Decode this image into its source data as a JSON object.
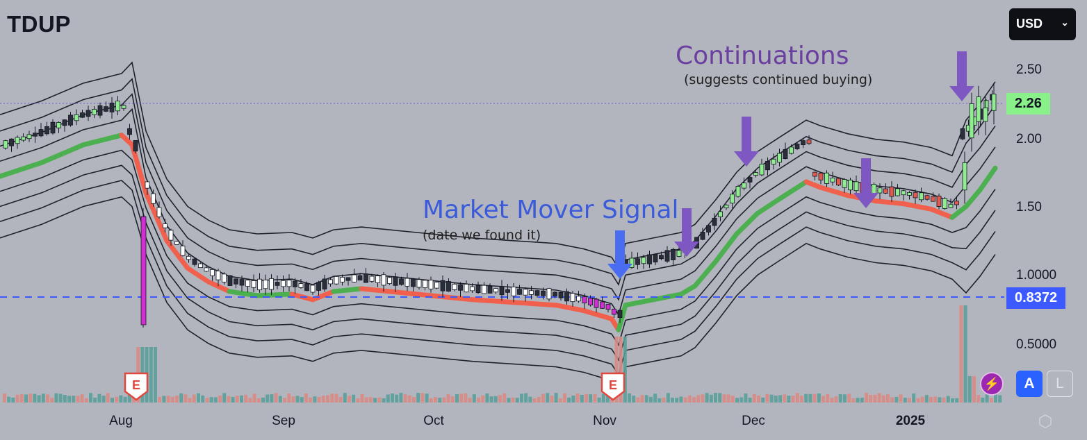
{
  "ticker": "TDUP",
  "currency": {
    "label": "USD",
    "icon": "chevron-down-icon"
  },
  "annotations": {
    "market_mover": {
      "title": "Market Mover Signal",
      "subtitle": "(date we found it)",
      "color": "#3b5bdb"
    },
    "continuations": {
      "title": "Continuations",
      "subtitle": "(suggests continued buying)",
      "color": "#6b3fa0"
    }
  },
  "price_axis": {
    "ticks": [
      "2.50",
      "2.00",
      "1.50",
      "1.0000",
      "0.5000"
    ],
    "last_price": "2.26",
    "signal_price": "0.8372"
  },
  "time_axis": [
    {
      "label": "Aug",
      "bold": false
    },
    {
      "label": "Sep",
      "bold": false
    },
    {
      "label": "Oct",
      "bold": false
    },
    {
      "label": "Nov",
      "bold": false
    },
    {
      "label": "Dec",
      "bold": false
    },
    {
      "label": "2025",
      "bold": true
    }
  ],
  "earnings_marker": "E",
  "buttons": {
    "auto_scale": "A",
    "log_scale": "L"
  },
  "colors": {
    "background": "#b2b5be",
    "trend_up": "#4caf50",
    "trend_down": "#f0604d",
    "candle_up": "#90ee90",
    "candle_down": "#e05a4f",
    "signal_bar": "#d22fd2",
    "arrow_purple": "#7e57c2",
    "arrow_blue": "#4a6cf0",
    "last_price_bg": "#8af08a",
    "signal_price_bg": "#3d5afe"
  },
  "chart_data": {
    "type": "candlestick",
    "ticker": "TDUP",
    "x_ticks": [
      "Aug",
      "Sep",
      "Oct",
      "Nov",
      "Dec",
      "2025"
    ],
    "y_ticks": [
      2.5,
      2.0,
      1.5,
      1.0,
      0.5
    ],
    "y_range": [
      0.35,
      2.85
    ],
    "last_close": 2.26,
    "signal_level": 0.8372,
    "segments": [
      {
        "from": "Jul",
        "to": "Aug",
        "start": 1.7,
        "end": 2.1,
        "trend": "up"
      },
      {
        "from": "Aug",
        "to": "Aug",
        "start": 2.1,
        "end": 0.65,
        "trend": "down"
      },
      {
        "from": "Aug",
        "to": "Nov",
        "start": 0.65,
        "end": 0.52,
        "trend": "flat"
      },
      {
        "from": "Nov",
        "to": "Dec",
        "start": 0.8,
        "end": 1.78,
        "trend": "up"
      },
      {
        "from": "Dec",
        "to": "2025",
        "start": 1.78,
        "end": 1.32,
        "trend": "down"
      },
      {
        "from": "2025",
        "to": "2025",
        "start": 1.32,
        "end": 2.26,
        "trend": "up"
      }
    ],
    "events": [
      {
        "label": "E",
        "month": "Aug",
        "type": "earnings"
      },
      {
        "label": "E",
        "month": "Nov",
        "type": "earnings"
      }
    ],
    "annotations": [
      {
        "text": "Market Mover Signal",
        "note": "(date we found it)",
        "month": "Nov"
      },
      {
        "text": "Continuations",
        "note": "(suggests continued buying)",
        "month": "Dec"
      }
    ]
  }
}
